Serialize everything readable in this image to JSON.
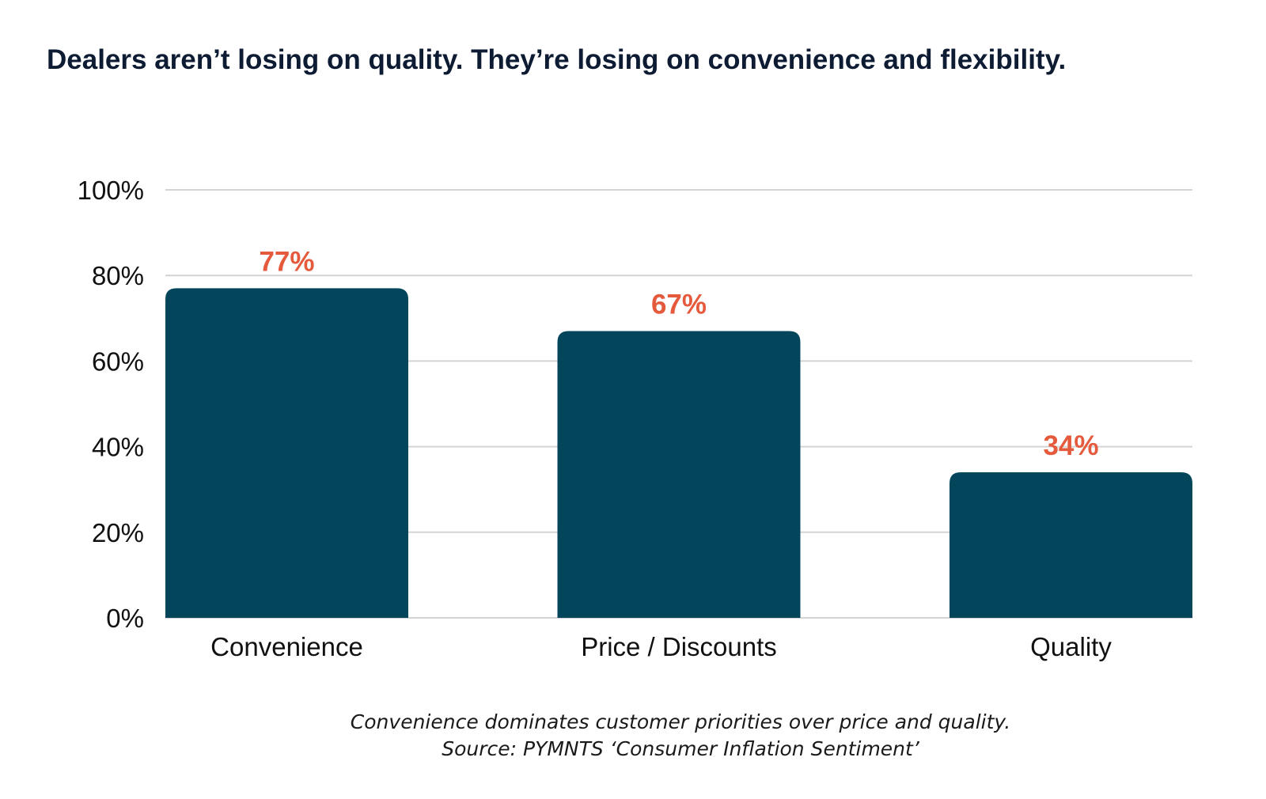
{
  "title": "Dealers aren’t losing on quality. They’re losing on convenience and flexibility.",
  "chart_data": {
    "type": "bar",
    "categories": [
      "Convenience",
      "Price / Discounts",
      "Quality"
    ],
    "values": [
      77,
      67,
      34
    ],
    "value_labels": [
      "77%",
      "67%",
      "34%"
    ],
    "ylim": [
      0,
      100
    ],
    "yticks": [
      0,
      20,
      40,
      60,
      80,
      100
    ],
    "ytick_labels": [
      "0%",
      "20%",
      "40%",
      "60%",
      "80%",
      "100%"
    ],
    "grid": true,
    "bar_color": "#03465c",
    "label_color": "#e55a3c",
    "xlabel": "",
    "ylabel": ""
  },
  "caption": {
    "line1": "Convenience dominates customer priorities over price and quality.",
    "line2": "Source: PYMNTS ‘Consumer Inflation Sentiment’"
  }
}
